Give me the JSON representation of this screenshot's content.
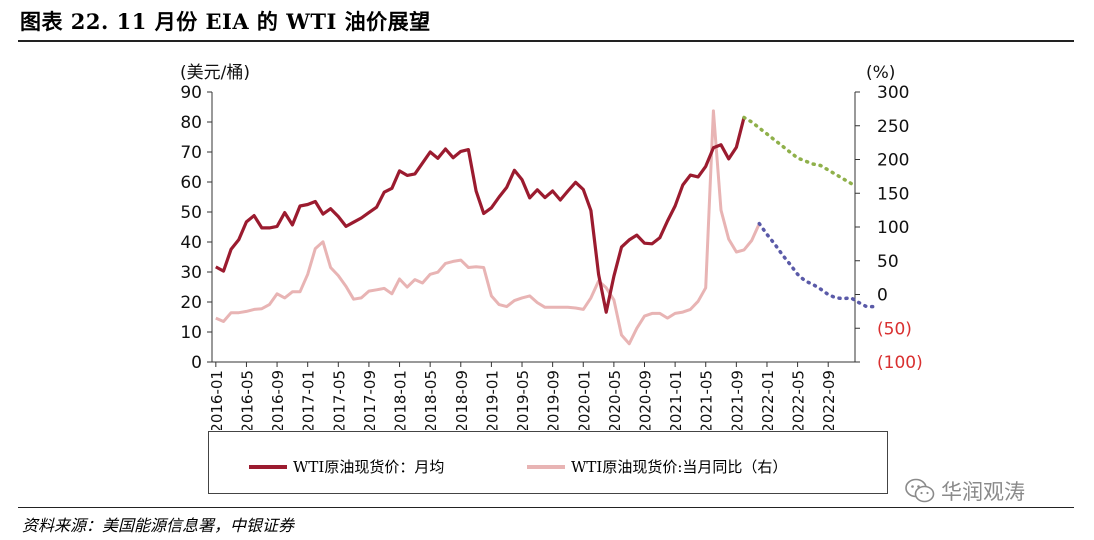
{
  "figure": {
    "title": "图表 22. 11 月份 EIA 的 WTI 油价展望",
    "source": "资料来源：美国能源信息署，中银证券",
    "watermark": "华润观涛"
  },
  "colors": {
    "price": "#9b1b2f",
    "yoy": "#e8b4b4",
    "forecast_price": "#8fb04a",
    "forecast_yoy": "#5a5aa8",
    "negative_tick": "#d93030"
  },
  "chart_data": {
    "type": "line",
    "yunit_left": "(美元/桶)",
    "yunit_right": "(%)",
    "ylim_left": [
      0,
      90
    ],
    "yticks_left": [
      "0",
      "10",
      "20",
      "30",
      "40",
      "50",
      "60",
      "70",
      "80",
      "90"
    ],
    "ylim_right": [
      -100,
      300
    ],
    "yticks_right": [
      {
        "value": -100,
        "label": "(100)"
      },
      {
        "value": -50,
        "label": "(50)"
      },
      {
        "value": 0,
        "label": "0"
      },
      {
        "value": 50,
        "label": "50"
      },
      {
        "value": 100,
        "label": "100"
      },
      {
        "value": 150,
        "label": "150"
      },
      {
        "value": 200,
        "label": "200"
      },
      {
        "value": 250,
        "label": "250"
      },
      {
        "value": 300,
        "label": "300"
      }
    ],
    "x_start": "2016-01",
    "x_end": "2022-12",
    "xtick_labels": [
      "2016-01",
      "2016-05",
      "2016-09",
      "2017-01",
      "2017-05",
      "2017-09",
      "2018-01",
      "2018-05",
      "2018-09",
      "2019-01",
      "2019-05",
      "2019-09",
      "2020-01",
      "2020-05",
      "2020-09",
      "2021-01",
      "2021-05",
      "2021-09",
      "2022-01",
      "2022-05",
      "2022-09"
    ],
    "legend": "bottom",
    "grid": false,
    "series": [
      {
        "name": "WTI原油现货价：月均",
        "axis": "left",
        "values": [
          31.7,
          30.3,
          37.6,
          40.8,
          46.7,
          48.8,
          44.7,
          44.7,
          45.2,
          49.8,
          45.7,
          52.0,
          52.5,
          53.5,
          49.3,
          51.1,
          48.5,
          45.2,
          46.6,
          48.0,
          49.8,
          51.6,
          56.6,
          57.9,
          63.7,
          62.2,
          62.7,
          66.3,
          70.0,
          67.9,
          71.0,
          68.1,
          70.2,
          70.8,
          57.0,
          49.5,
          51.4,
          55.0,
          58.2,
          63.9,
          60.8,
          54.7,
          57.4,
          54.8,
          57.0,
          54.0,
          57.0,
          59.9,
          57.5,
          50.5,
          29.2,
          16.6,
          28.6,
          38.3,
          40.7,
          42.3,
          39.6,
          39.4,
          41.4,
          47.0,
          52.0,
          59.0,
          62.3,
          61.7,
          65.2,
          71.4,
          72.4,
          67.7,
          71.6,
          81.5
        ],
        "forecast": [
          81.5,
          80.0,
          78.0,
          76.0,
          74.0,
          72.0,
          70.0,
          68.0,
          67.0,
          66.0,
          65.5,
          64.0,
          62.5,
          61.0,
          59.5
        ]
      },
      {
        "name": "WTI原油现货价:当月同比（右）",
        "axis": "right",
        "values": [
          -35,
          -40,
          -27,
          -27,
          -25,
          -22,
          -21,
          -15,
          1,
          -5,
          4,
          4,
          30,
          68,
          78,
          40,
          28,
          12,
          -7,
          -5,
          5,
          7,
          9,
          1,
          23,
          11,
          22,
          17,
          30,
          33,
          46,
          49,
          51,
          40,
          41,
          40,
          -2,
          -15,
          -18,
          -9,
          -5,
          -2,
          -12,
          -19,
          -19,
          -19,
          -19,
          -20,
          -22,
          -5,
          20,
          10,
          -8,
          -60,
          -73,
          -50,
          -32,
          -28,
          -28,
          -35,
          -28,
          -26,
          -22,
          -10,
          10,
          272,
          125,
          82,
          63,
          66,
          80,
          105
        ],
        "forecast": [
          105,
          89,
          75,
          59,
          45,
          30,
          20,
          15,
          8,
          0,
          -5,
          -6,
          -5,
          -12,
          -18,
          -18
        ]
      }
    ]
  }
}
